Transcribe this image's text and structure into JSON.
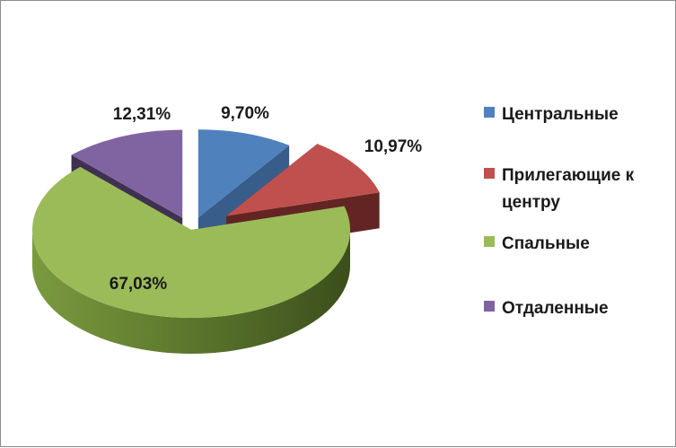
{
  "chart_data": {
    "type": "pie",
    "three_d": true,
    "exploded": true,
    "categories": [
      "Центральные",
      "Прилегающие к центру",
      "Спальные",
      "Отдаленные"
    ],
    "values": [
      9.7,
      10.97,
      67.03,
      12.31
    ],
    "data_labels": [
      "9,70%",
      "10,97%",
      "67,03%",
      "12,31%"
    ],
    "colors": [
      "#4f81bd",
      "#c0504d",
      "#9bbb59",
      "#8064a2"
    ],
    "side_colors": [
      "#385d8a",
      "#632523",
      "#4f6228",
      "#3f3151"
    ],
    "legend_position": "right",
    "title": ""
  },
  "legend": {
    "items": [
      {
        "label": "Центральные",
        "color": "#4f81bd"
      },
      {
        "label": "Прилегающие к центру",
        "color": "#c0504d"
      },
      {
        "label": "Спальные",
        "color": "#9bbb59"
      },
      {
        "label": "Отдаленные",
        "color": "#8064a2"
      }
    ]
  }
}
